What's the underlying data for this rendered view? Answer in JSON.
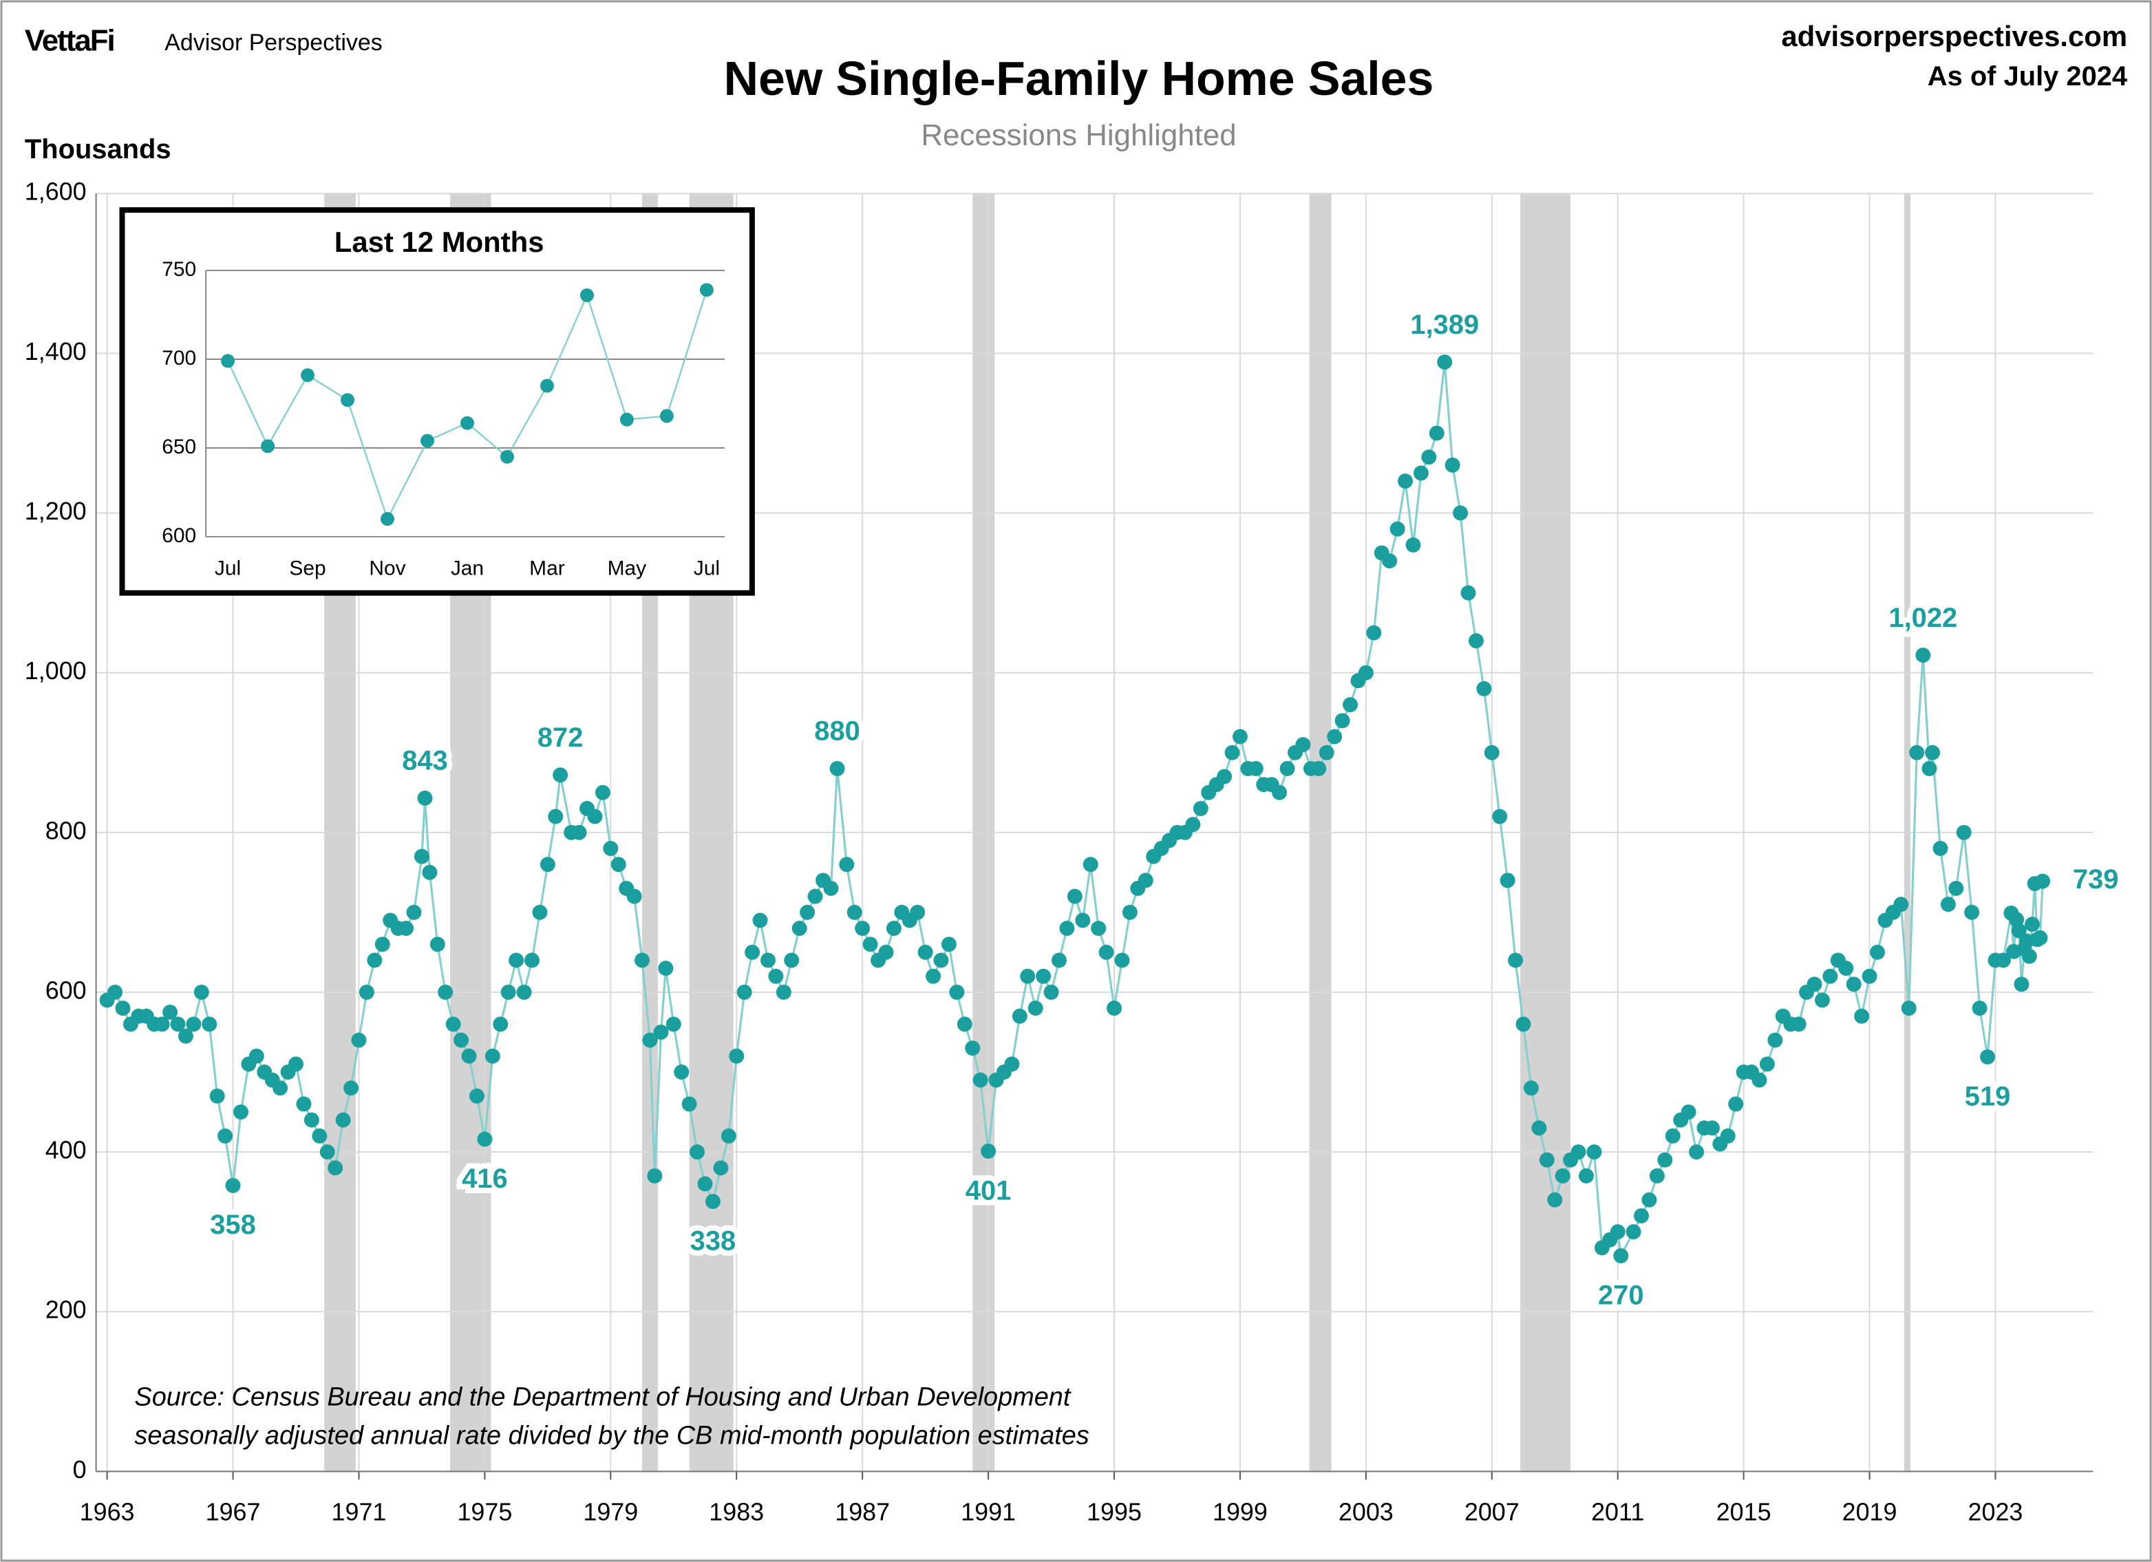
{
  "header": {
    "brand": "VettaFi",
    "brand_sub": "Advisor Perspectives",
    "site": "advisorperspectives.com",
    "as_of": "As of July 2024"
  },
  "chart_data": [
    {
      "type": "line",
      "title": "New Single-Family Home Sales",
      "subtitle": "Recessions Highlighted",
      "y_label": "Thousands",
      "notes": [
        "Source: Census Bureau and the Department of Housing and Urban Development",
        "seasonally adjusted annual rate divided by the CB mid-month population estimates"
      ],
      "xlim": [
        1962.65,
        2026.1
      ],
      "xticks": [
        1963,
        1967,
        1971,
        1975,
        1979,
        1983,
        1987,
        1991,
        1995,
        1999,
        2003,
        2007,
        2011,
        2015,
        2019,
        2023
      ],
      "ylim": [
        0,
        1600
      ],
      "yticks": [
        0,
        200,
        400,
        600,
        800,
        {
          "value": 1000,
          "label": "1,000"
        },
        {
          "value": 1200,
          "label": "1,200"
        },
        {
          "value": 1400,
          "label": "1,400"
        },
        {
          "value": 1600,
          "label": "1,600"
        }
      ],
      "grid": true,
      "recessions": [
        [
          1969.9,
          1970.9
        ],
        [
          1973.9,
          1975.2
        ],
        [
          1980.0,
          1980.5
        ],
        [
          1981.5,
          1982.9
        ],
        [
          1990.5,
          1991.2
        ],
        [
          2001.2,
          2001.9
        ],
        [
          2007.9,
          2009.5
        ],
        [
          2020.1,
          2020.3
        ]
      ],
      "recession_color": "#d3d3d3",
      "series": [
        {
          "color": "#1a9e9e",
          "line_color": "#86cfcf",
          "x": [
            1963.0,
            1963.25,
            1963.5,
            1963.75,
            1964.0,
            1964.25,
            1964.5,
            1964.75,
            1965.0,
            1965.25,
            1965.5,
            1965.75,
            1966.0,
            1966.25,
            1966.5,
            1966.75,
            1967.0,
            1967.25,
            1967.5,
            1967.75,
            1968.0,
            1968.25,
            1968.5,
            1968.75,
            1969.0,
            1969.25,
            1969.5,
            1969.75,
            1970.0,
            1970.25,
            1970.5,
            1970.75,
            1971.0,
            1971.25,
            1971.5,
            1971.75,
            1972.0,
            1972.25,
            1972.5,
            1972.75,
            1973.0,
            1973.1,
            1973.25,
            1973.5,
            1973.75,
            1974.0,
            1974.25,
            1974.5,
            1974.75,
            1975.0,
            1975.25,
            1975.5,
            1975.75,
            1976.0,
            1976.25,
            1976.5,
            1976.75,
            1977.0,
            1977.25,
            1977.4,
            1977.75,
            1978.0,
            1978.25,
            1978.5,
            1978.75,
            1979.0,
            1979.25,
            1979.5,
            1979.75,
            1980.0,
            1980.25,
            1980.4,
            1980.6,
            1980.75,
            1981.0,
            1981.25,
            1981.5,
            1981.75,
            1982.0,
            1982.25,
            1982.5,
            1982.75,
            1983.0,
            1983.25,
            1983.5,
            1983.75,
            1984.0,
            1984.25,
            1984.5,
            1984.75,
            1985.0,
            1985.25,
            1985.5,
            1985.75,
            1986.0,
            1986.2,
            1986.5,
            1986.75,
            1987.0,
            1987.25,
            1987.5,
            1987.75,
            1988.0,
            1988.25,
            1988.5,
            1988.75,
            1989.0,
            1989.25,
            1989.5,
            1989.75,
            1990.0,
            1990.25,
            1990.5,
            1990.75,
            1991.0,
            1991.25,
            1991.5,
            1991.75,
            1992.0,
            1992.25,
            1992.5,
            1992.75,
            1993.0,
            1993.25,
            1993.5,
            1993.75,
            1994.0,
            1994.25,
            1994.5,
            1994.75,
            1995.0,
            1995.25,
            1995.5,
            1995.75,
            1996.0,
            1996.25,
            1996.5,
            1996.75,
            1997.0,
            1997.25,
            1997.5,
            1997.75,
            1998.0,
            1998.25,
            1998.5,
            1998.75,
            1999.0,
            1999.25,
            1999.5,
            1999.75,
            2000.0,
            2000.25,
            2000.5,
            2000.75,
            2001.0,
            2001.25,
            2001.5,
            2001.75,
            2002.0,
            2002.25,
            2002.5,
            2002.75,
            2003.0,
            2003.25,
            2003.5,
            2003.75,
            2004.0,
            2004.25,
            2004.5,
            2004.75,
            2005.0,
            2005.25,
            2005.5,
            2005.75,
            2006.0,
            2006.25,
            2006.5,
            2006.75,
            2007.0,
            2007.25,
            2007.5,
            2007.75,
            2008.0,
            2008.25,
            2008.5,
            2008.75,
            2009.0,
            2009.25,
            2009.5,
            2009.75,
            2010.0,
            2010.25,
            2010.5,
            2010.75,
            2011.0,
            2011.1,
            2011.5,
            2011.75,
            2012.0,
            2012.25,
            2012.5,
            2012.75,
            2013.0,
            2013.25,
            2013.5,
            2013.75,
            2014.0,
            2014.25,
            2014.5,
            2014.75,
            2015.0,
            2015.25,
            2015.5,
            2015.75,
            2016.0,
            2016.25,
            2016.5,
            2016.75,
            2017.0,
            2017.25,
            2017.5,
            2017.75,
            2018.0,
            2018.25,
            2018.5,
            2018.75,
            2019.0,
            2019.25,
            2019.5,
            2019.75,
            2020.0,
            2020.25,
            2020.5,
            2020.7,
            2020.9,
            2021.0,
            2021.25,
            2021.5,
            2021.75,
            2022.0,
            2022.25,
            2022.5,
            2022.75,
            2023.0,
            2023.25,
            2023.5,
            2023.58,
            2023.67,
            2023.75,
            2023.83,
            2023.92,
            2024.0,
            2024.08,
            2024.17,
            2024.25,
            2024.33,
            2024.42,
            2024.5
          ],
          "values": [
            590,
            600,
            580,
            560,
            570,
            570,
            560,
            560,
            575,
            560,
            545,
            560,
            600,
            560,
            470,
            420,
            358,
            450,
            510,
            520,
            500,
            490,
            480,
            500,
            510,
            460,
            440,
            420,
            400,
            380,
            440,
            480,
            540,
            600,
            640,
            660,
            690,
            680,
            680,
            700,
            770,
            843,
            750,
            660,
            600,
            560,
            540,
            520,
            470,
            416,
            520,
            560,
            600,
            640,
            600,
            640,
            700,
            760,
            820,
            872,
            800,
            800,
            830,
            820,
            850,
            780,
            760,
            730,
            720,
            640,
            540,
            370,
            550,
            630,
            560,
            500,
            460,
            400,
            360,
            338,
            380,
            420,
            520,
            600,
            650,
            690,
            640,
            620,
            600,
            640,
            680,
            700,
            720,
            740,
            730,
            880,
            760,
            700,
            680,
            660,
            640,
            650,
            680,
            700,
            690,
            700,
            650,
            620,
            640,
            660,
            600,
            560,
            530,
            490,
            401,
            490,
            500,
            510,
            570,
            620,
            580,
            620,
            600,
            640,
            680,
            720,
            690,
            760,
            680,
            650,
            580,
            640,
            700,
            730,
            740,
            770,
            780,
            790,
            800,
            800,
            810,
            830,
            850,
            860,
            870,
            900,
            920,
            880,
            880,
            860,
            860,
            850,
            880,
            900,
            910,
            880,
            880,
            900,
            920,
            940,
            960,
            990,
            1000,
            1050,
            1150,
            1140,
            1180,
            1240,
            1160,
            1250,
            1270,
            1300,
            1389,
            1260,
            1200,
            1100,
            1040,
            980,
            900,
            820,
            740,
            640,
            560,
            480,
            430,
            390,
            340,
            370,
            390,
            400,
            370,
            400,
            280,
            290,
            300,
            270,
            300,
            320,
            340,
            370,
            390,
            420,
            440,
            450,
            400,
            430,
            430,
            410,
            420,
            460,
            500,
            500,
            490,
            510,
            540,
            570,
            560,
            560,
            600,
            610,
            590,
            620,
            640,
            630,
            610,
            570,
            620,
            650,
            690,
            700,
            710,
            580,
            900,
            1022,
            880,
            900,
            780,
            710,
            730,
            800,
            700,
            580,
            519,
            640,
            640,
            699,
            651,
            691,
            677,
            610,
            654,
            664,
            645,
            685,
            736,
            666,
            668,
            739
          ]
        }
      ],
      "annotations": [
        {
          "x": 1967.0,
          "value": 358,
          "label": "358",
          "position": "below"
        },
        {
          "x": 1973.1,
          "value": 843,
          "label": "843",
          "position": "above"
        },
        {
          "x": 1975.0,
          "value": 416,
          "label": "416",
          "position": "below"
        },
        {
          "x": 1977.4,
          "value": 872,
          "label": "872",
          "position": "above"
        },
        {
          "x": 1982.25,
          "value": 338,
          "label": "338",
          "position": "below"
        },
        {
          "x": 1986.2,
          "value": 880,
          "label": "880",
          "position": "above"
        },
        {
          "x": 1991.0,
          "value": 401,
          "label": "401",
          "position": "below"
        },
        {
          "x": 2005.5,
          "value": 1389,
          "label": "1,389",
          "position": "above"
        },
        {
          "x": 2011.1,
          "value": 270,
          "label": "270",
          "position": "below"
        },
        {
          "x": 2020.7,
          "value": 1022,
          "label": "1,022",
          "position": "above"
        },
        {
          "x": 2022.75,
          "value": 519,
          "label": "519",
          "position": "below"
        },
        {
          "x": 2024.5,
          "value": 739,
          "label": "739",
          "position": "right"
        }
      ]
    },
    {
      "type": "line",
      "title": "Last 12 Months",
      "categories": [
        "Jul",
        null,
        "Sep",
        null,
        "Nov",
        null,
        "Jan",
        null,
        "Mar",
        null,
        "May",
        null,
        "Jul"
      ],
      "ylim": [
        600,
        750
      ],
      "yticks": [
        600,
        650,
        700,
        750
      ],
      "grid": true,
      "series": [
        {
          "color": "#1a9e9e",
          "line_color": "#86cfcf",
          "values": [
            699,
            651,
            691,
            677,
            610,
            654,
            664,
            645,
            685,
            736,
            666,
            668,
            739
          ]
        }
      ]
    }
  ]
}
